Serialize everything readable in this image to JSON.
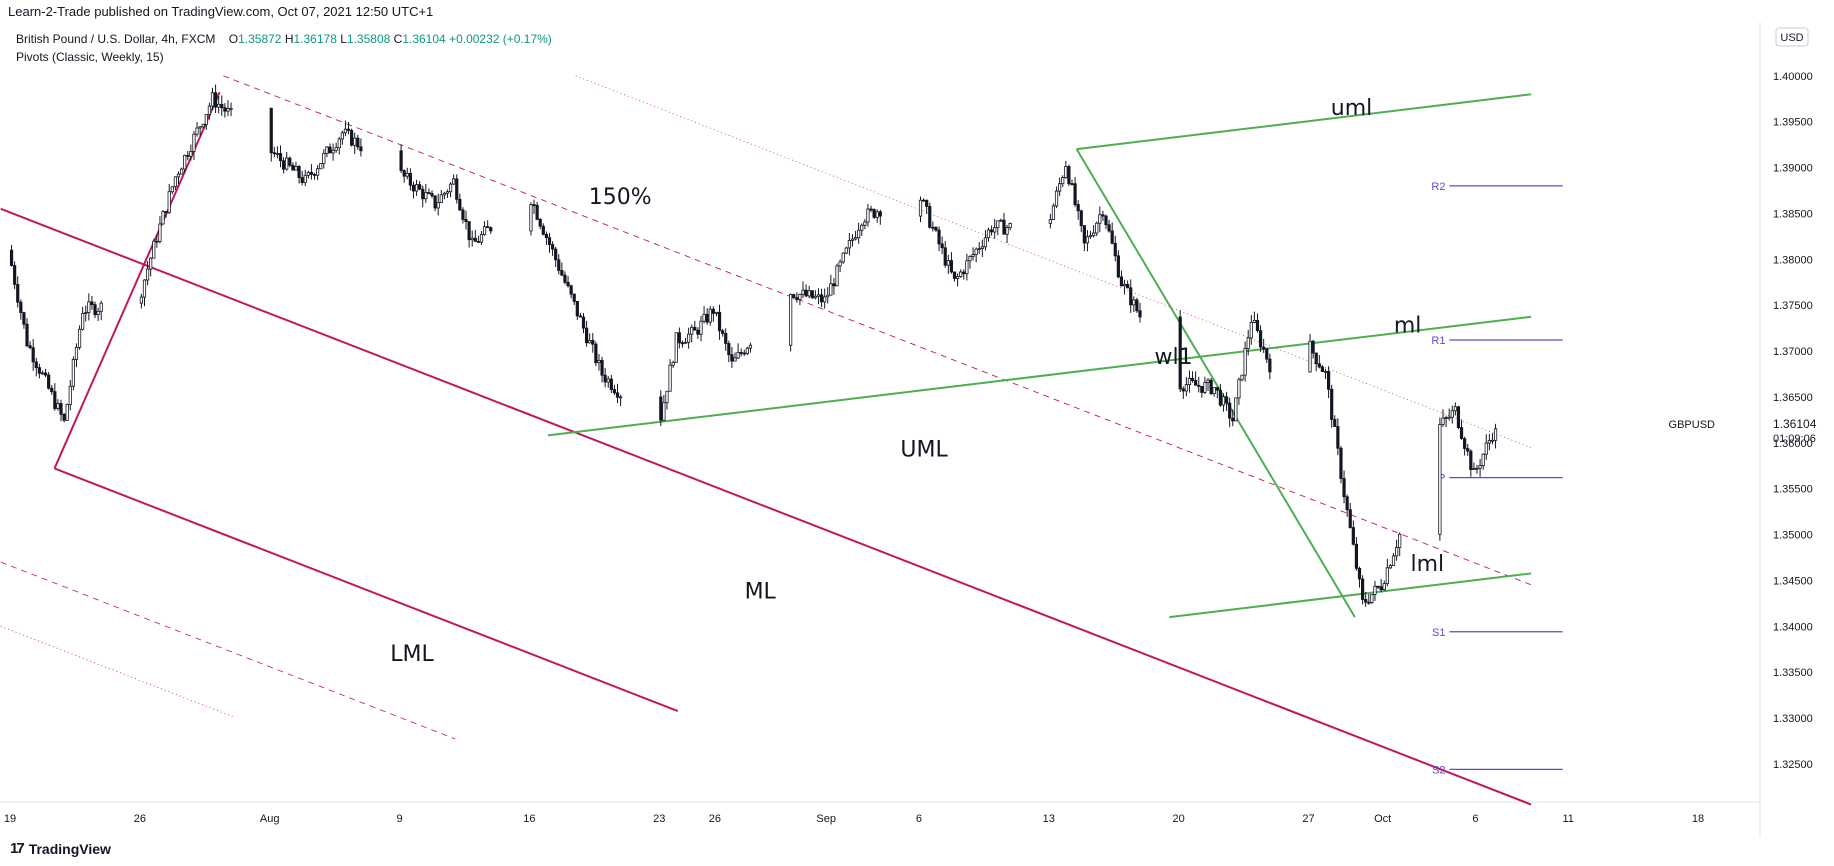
{
  "header": {
    "published": "Learn-2-Trade published on TradingView.com, Oct 07, 2021 12:50 UTC+1"
  },
  "instrument": {
    "title": "British Pound / U.S. Dollar, 4h, FXCM",
    "open_label": "O",
    "open": "1.35872",
    "high_label": "H",
    "high": "1.36178",
    "low_label": "L",
    "low": "1.35808",
    "close_label": "C",
    "close": "1.36104",
    "change": "+0.00232 (+0.17%)"
  },
  "indicator": "Pivots (Classic, Weekly, 15)",
  "axis": {
    "currency": "USD",
    "symbol": "GBPUSD",
    "last_price": "1.36104",
    "countdown": "01:09:06"
  },
  "footer": {
    "brand": "TradingView"
  },
  "colors": {
    "pitchfork_magenta": "#c2185b",
    "pitchfork_green": "#4caf50",
    "pivot_purple": "#5b4bd1",
    "candle": "#131722"
  },
  "chart_data": {
    "type": "candlestick",
    "symbol": "GBPUSD",
    "timeframe": "4h",
    "ylim": [
      1.3215,
      1.4015
    ],
    "y_ticks": [
      1.325,
      1.33,
      1.335,
      1.34,
      1.345,
      1.35,
      1.355,
      1.36,
      1.365,
      1.37,
      1.375,
      1.38,
      1.385,
      1.39,
      1.395,
      1.4
    ],
    "y_tick_labels": [
      "1.32500",
      "1.33000",
      "1.33500",
      "1.34000",
      "1.34500",
      "1.35000",
      "1.35500",
      "1.36000",
      "1.36500",
      "1.37000",
      "1.37500",
      "1.38000",
      "1.38500",
      "1.39000",
      "1.39500",
      "1.40000"
    ],
    "x_ticks": [
      {
        "label": "19",
        "date": "2021-07-19"
      },
      {
        "label": "26",
        "date": "2021-07-26"
      },
      {
        "label": "Aug",
        "date": "2021-08-02"
      },
      {
        "label": "9",
        "date": "2021-08-09"
      },
      {
        "label": "16",
        "date": "2021-08-16"
      },
      {
        "label": "23",
        "date": "2021-08-23"
      },
      {
        "label": "26",
        "date": "2021-08-26"
      },
      {
        "label": "Sep",
        "date": "2021-09-01"
      },
      {
        "label": "6",
        "date": "2021-09-06"
      },
      {
        "label": "13",
        "date": "2021-09-13"
      },
      {
        "label": "20",
        "date": "2021-09-20"
      },
      {
        "label": "27",
        "date": "2021-09-27"
      },
      {
        "label": "Oct",
        "date": "2021-10-01"
      },
      {
        "label": "6",
        "date": "2021-10-06"
      },
      {
        "label": "11",
        "date": "2021-10-11"
      },
      {
        "label": "18",
        "date": "2021-10-18"
      }
    ],
    "price_path": [
      {
        "date": "2021-07-19",
        "price": 1.381
      },
      {
        "date": "2021-07-20",
        "price": 1.371
      },
      {
        "date": "2021-07-21",
        "price": 1.3666
      },
      {
        "date": "2021-07-22",
        "price": 1.3622
      },
      {
        "date": "2021-07-23",
        "price": 1.3745
      },
      {
        "date": "2021-07-26",
        "price": 1.3755
      },
      {
        "date": "2021-07-27",
        "price": 1.3825
      },
      {
        "date": "2021-07-28",
        "price": 1.389
      },
      {
        "date": "2021-07-30",
        "price": 1.3975
      },
      {
        "date": "2021-08-02",
        "price": 1.392
      },
      {
        "date": "2021-08-04",
        "price": 1.3885
      },
      {
        "date": "2021-08-06",
        "price": 1.3938
      },
      {
        "date": "2021-08-09",
        "price": 1.3895
      },
      {
        "date": "2021-08-11",
        "price": 1.386
      },
      {
        "date": "2021-08-12",
        "price": 1.3885
      },
      {
        "date": "2021-08-13",
        "price": 1.3815
      },
      {
        "date": "2021-08-16",
        "price": 1.3875
      },
      {
        "date": "2021-08-18",
        "price": 1.3775
      },
      {
        "date": "2021-08-19",
        "price": 1.3725
      },
      {
        "date": "2021-08-20",
        "price": 1.3675
      },
      {
        "date": "2021-08-23",
        "price": 1.3612
      },
      {
        "date": "2021-08-24",
        "price": 1.3712
      },
      {
        "date": "2021-08-25",
        "price": 1.372
      },
      {
        "date": "2021-08-26",
        "price": 1.3745
      },
      {
        "date": "2021-08-27",
        "price": 1.3685
      },
      {
        "date": "2021-08-30",
        "price": 1.3765
      },
      {
        "date": "2021-09-01",
        "price": 1.3755
      },
      {
        "date": "2021-09-03",
        "price": 1.3845
      },
      {
        "date": "2021-09-06",
        "price": 1.3875
      },
      {
        "date": "2021-09-08",
        "price": 1.3775
      },
      {
        "date": "2021-09-10",
        "price": 1.3835
      },
      {
        "date": "2021-09-13",
        "price": 1.3835
      },
      {
        "date": "2021-09-14",
        "price": 1.3905
      },
      {
        "date": "2021-09-15",
        "price": 1.3815
      },
      {
        "date": "2021-09-16",
        "price": 1.3855
      },
      {
        "date": "2021-09-17",
        "price": 1.3775
      },
      {
        "date": "2021-09-20",
        "price": 1.3665
      },
      {
        "date": "2021-09-22",
        "price": 1.366
      },
      {
        "date": "2021-09-23",
        "price": 1.3625
      },
      {
        "date": "2021-09-24",
        "price": 1.3735
      },
      {
        "date": "2021-09-25",
        "price": 1.3685
      },
      {
        "date": "2021-09-27",
        "price": 1.371
      },
      {
        "date": "2021-09-28",
        "price": 1.3675
      },
      {
        "date": "2021-09-29",
        "price": 1.3545
      },
      {
        "date": "2021-09-30",
        "price": 1.3425
      },
      {
        "date": "2021-10-01",
        "price": 1.3445
      },
      {
        "date": "2021-10-03",
        "price": 1.3555
      },
      {
        "date": "2021-10-04",
        "price": 1.3615
      },
      {
        "date": "2021-10-05",
        "price": 1.3635
      },
      {
        "date": "2021-10-06",
        "price": 1.3565
      },
      {
        "date": "2021-10-07",
        "price": 1.36104
      }
    ],
    "pivots": [
      {
        "label": "R2",
        "value": 1.388
      },
      {
        "label": "R1",
        "value": 1.3712
      },
      {
        "label": "P",
        "value": 1.3562
      },
      {
        "label": "S1",
        "value": 1.3394
      },
      {
        "label": "S2",
        "value": 1.3244
      }
    ],
    "line_labels": [
      {
        "text": "uml"
      },
      {
        "text": "ml"
      },
      {
        "text": "wl1"
      },
      {
        "text": "lml"
      },
      {
        "text": "150%"
      },
      {
        "text": "UML"
      },
      {
        "text": "ML"
      },
      {
        "text": "LML"
      }
    ]
  }
}
